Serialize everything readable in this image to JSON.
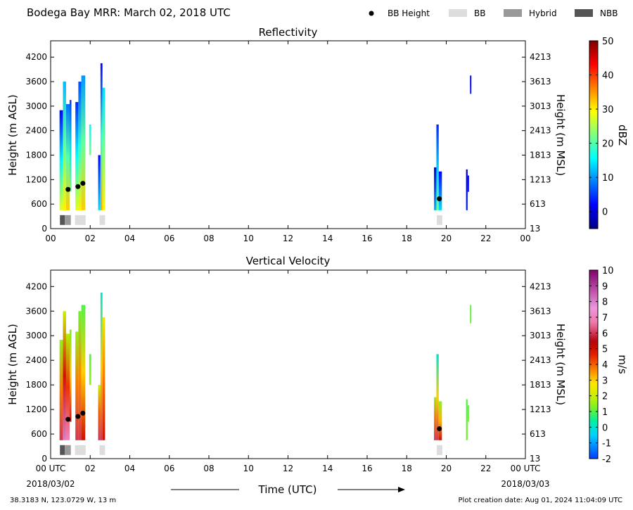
{
  "header": {
    "title": "Bodega Bay MRR:  March 02, 2018 UTC",
    "legend": [
      {
        "label": "BB Height",
        "kind": "dot",
        "color": "#000000"
      },
      {
        "label": "BB",
        "kind": "box",
        "color": "#dddddd"
      },
      {
        "label": "Hybrid",
        "kind": "box",
        "color": "#999999"
      },
      {
        "label": "NBB",
        "kind": "box",
        "color": "#555555"
      }
    ]
  },
  "footer": {
    "coords": "38.3183 N, 123.0729 W, 13 m",
    "creation": "Plot creation date: Aug 01, 2024 11:04:09 UTC",
    "xlabel": "Time (UTC)",
    "start_date": "2018/03/02",
    "end_date": "2018/03/03"
  },
  "chart_data": [
    {
      "type": "heatmap",
      "title": "Reflectivity",
      "ylabel_left": "Height (m AGL)",
      "ylabel_right": "Height (m MSL)",
      "xlim": [
        0,
        24
      ],
      "ylim": [
        0,
        4600
      ],
      "x_ticks": [
        "00",
        "02",
        "04",
        "06",
        "08",
        "10",
        "12",
        "14",
        "16",
        "18",
        "20",
        "22",
        "00"
      ],
      "y_ticks_left": [
        0,
        600,
        1200,
        1800,
        2400,
        3000,
        3600,
        4200
      ],
      "y_ticks_right": [
        13,
        613,
        1213,
        1813,
        2413,
        3013,
        3613,
        4213
      ],
      "colorbar": {
        "label": "dBZ",
        "min": -5,
        "max": 50,
        "ticks": [
          0,
          10,
          20,
          30,
          40,
          50
        ],
        "colormap": "jet"
      },
      "bb_height": [
        {
          "time": 0.88,
          "height": 960
        },
        {
          "time": 1.38,
          "height": 1030
        },
        {
          "time": 1.63,
          "height": 1110
        },
        {
          "time": 19.65,
          "height": 730
        }
      ],
      "bb_classes": [
        {
          "start": 0.47,
          "end": 0.72,
          "class": "NBB"
        },
        {
          "start": 0.72,
          "end": 1.02,
          "class": "Hybrid"
        },
        {
          "start": 1.23,
          "end": 1.77,
          "class": "BB"
        },
        {
          "start": 2.47,
          "end": 2.75,
          "class": "BB"
        },
        {
          "start": 19.52,
          "end": 19.8,
          "class": "BB"
        }
      ],
      "echo_columns": [
        {
          "t0": 0.45,
          "t1": 0.62,
          "base": 450,
          "top": 2900,
          "value_low": 28,
          "value_high": 2
        },
        {
          "t0": 0.62,
          "t1": 0.78,
          "base": 450,
          "top": 3600,
          "value_low": 30,
          "value_high": 12
        },
        {
          "t0": 0.78,
          "t1": 0.96,
          "base": 450,
          "top": 3050,
          "value_low": 32,
          "value_high": 8
        },
        {
          "t0": 0.96,
          "t1": 1.05,
          "base": 900,
          "top": 3150,
          "value_low": 22,
          "value_high": 5
        },
        {
          "t0": 1.25,
          "t1": 1.4,
          "base": 450,
          "top": 3100,
          "value_low": 28,
          "value_high": 4
        },
        {
          "t0": 1.4,
          "t1": 1.55,
          "base": 450,
          "top": 3600,
          "value_low": 30,
          "value_high": 6
        },
        {
          "t0": 1.55,
          "t1": 1.75,
          "base": 450,
          "top": 3750,
          "value_low": 32,
          "value_high": 10
        },
        {
          "t0": 1.95,
          "t1": 2.05,
          "base": 1800,
          "top": 2550,
          "value_low": 22,
          "value_high": 16
        },
        {
          "t0": 2.4,
          "t1": 2.52,
          "base": 450,
          "top": 1800,
          "value_low": 14,
          "value_high": 2
        },
        {
          "t0": 2.52,
          "t1": 2.62,
          "base": 450,
          "top": 4050,
          "value_low": 34,
          "value_high": 2
        },
        {
          "t0": 2.62,
          "t1": 2.75,
          "base": 450,
          "top": 3450,
          "value_low": 30,
          "value_high": 14
        },
        {
          "t0": 19.38,
          "t1": 19.5,
          "base": 450,
          "top": 1500,
          "value_low": 12,
          "value_high": 0
        },
        {
          "t0": 19.5,
          "t1": 19.62,
          "base": 450,
          "top": 2550,
          "value_low": 22,
          "value_high": 4
        },
        {
          "t0": 19.62,
          "t1": 19.78,
          "base": 450,
          "top": 1400,
          "value_low": 14,
          "value_high": 2
        },
        {
          "t0": 21.0,
          "t1": 21.08,
          "base": 450,
          "top": 1450,
          "value_low": 4,
          "value_high": 0
        },
        {
          "t0": 21.08,
          "t1": 21.15,
          "base": 900,
          "top": 1300,
          "value_low": 4,
          "value_high": 0
        },
        {
          "t0": 21.2,
          "t1": 21.27,
          "base": 3300,
          "top": 3750,
          "value_low": 4,
          "value_high": 0
        }
      ]
    },
    {
      "type": "heatmap",
      "title": "Vertical Velocity",
      "ylabel_left": "Height (m AGL)",
      "ylabel_right": "Height (m MSL)",
      "xlim": [
        0,
        24
      ],
      "ylim": [
        0,
        4600
      ],
      "x_ticks": [
        "00 UTC",
        "02",
        "04",
        "06",
        "08",
        "10",
        "12",
        "14",
        "16",
        "18",
        "20",
        "22",
        "00 UTC"
      ],
      "y_ticks_left": [
        0,
        600,
        1200,
        1800,
        2400,
        3000,
        3600,
        4200
      ],
      "y_ticks_right": [
        13,
        613,
        1213,
        1813,
        2413,
        3013,
        3613,
        4213
      ],
      "colorbar": {
        "label": "m/s",
        "min": -2,
        "max": 10,
        "ticks": [
          -2,
          -1,
          0,
          1,
          2,
          3,
          4,
          5,
          6,
          7,
          8,
          9,
          10
        ],
        "colormap": "velocity"
      },
      "bb_height": [
        {
          "time": 0.88,
          "height": 960
        },
        {
          "time": 1.38,
          "height": 1030
        },
        {
          "time": 1.63,
          "height": 1110
        },
        {
          "time": 19.65,
          "height": 730
        }
      ],
      "bb_classes": [
        {
          "start": 0.47,
          "end": 0.72,
          "class": "NBB"
        },
        {
          "start": 0.72,
          "end": 1.02,
          "class": "Hybrid"
        },
        {
          "start": 1.23,
          "end": 1.77,
          "class": "BB"
        },
        {
          "start": 2.47,
          "end": 2.75,
          "class": "BB"
        },
        {
          "start": 19.52,
          "end": 19.8,
          "class": "BB"
        }
      ],
      "echo_columns": [
        {
          "t0": 0.45,
          "t1": 0.62,
          "base": 450,
          "top": 2900,
          "value_low": 6,
          "value_high": 1.5
        },
        {
          "t0": 0.62,
          "t1": 0.78,
          "base": 450,
          "top": 3600,
          "value_low": 8,
          "value_high": 2
        },
        {
          "t0": 0.78,
          "t1": 0.96,
          "base": 450,
          "top": 3050,
          "value_low": 7,
          "value_high": 1.8
        },
        {
          "t0": 0.96,
          "t1": 1.05,
          "base": 900,
          "top": 3150,
          "value_low": 5,
          "value_high": 1.2
        },
        {
          "t0": 1.25,
          "t1": 1.4,
          "base": 450,
          "top": 3100,
          "value_low": 6,
          "value_high": 1.5
        },
        {
          "t0": 1.4,
          "t1": 1.55,
          "base": 450,
          "top": 3600,
          "value_low": 6,
          "value_high": 1.2
        },
        {
          "t0": 1.55,
          "t1": 1.75,
          "base": 450,
          "top": 3750,
          "value_low": 5,
          "value_high": 1
        },
        {
          "t0": 1.95,
          "t1": 2.05,
          "base": 1800,
          "top": 2550,
          "value_low": 1.5,
          "value_high": 1
        },
        {
          "t0": 2.4,
          "t1": 2.52,
          "base": 450,
          "top": 1800,
          "value_low": 6,
          "value_high": 2
        },
        {
          "t0": 2.52,
          "t1": 2.62,
          "base": 450,
          "top": 4050,
          "value_low": 6,
          "value_high": 0
        },
        {
          "t0": 2.62,
          "t1": 2.75,
          "base": 450,
          "top": 3450,
          "value_low": 5,
          "value_high": 2.5
        },
        {
          "t0": 19.38,
          "t1": 19.5,
          "base": 450,
          "top": 1500,
          "value_low": 6,
          "value_high": 1.5
        },
        {
          "t0": 19.5,
          "t1": 19.62,
          "base": 450,
          "top": 2550,
          "value_low": 6,
          "value_high": 0
        },
        {
          "t0": 19.62,
          "t1": 19.78,
          "base": 450,
          "top": 1400,
          "value_low": 5,
          "value_high": 1.5
        },
        {
          "t0": 21.0,
          "t1": 21.08,
          "base": 450,
          "top": 1450,
          "value_low": 1.2,
          "value_high": 1
        },
        {
          "t0": 21.08,
          "t1": 21.15,
          "base": 900,
          "top": 1300,
          "value_low": 1.2,
          "value_high": 1
        },
        {
          "t0": 21.2,
          "t1": 21.27,
          "base": 3300,
          "top": 3750,
          "value_low": 1.2,
          "value_high": 1
        }
      ]
    }
  ]
}
